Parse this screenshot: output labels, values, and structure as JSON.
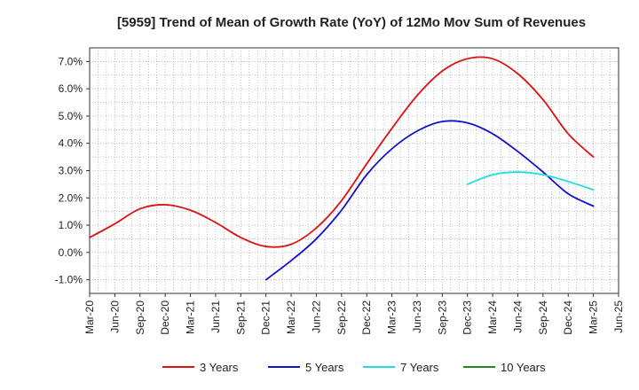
{
  "chart_data": {
    "type": "line",
    "title": "[5959]  Trend of Mean of Growth Rate (YoY) of 12Mo Mov Sum of Revenues",
    "xlabel": "",
    "ylabel": "",
    "x_tick_labels": [
      "Mar-20",
      "Jun-20",
      "Sep-20",
      "Dec-20",
      "Mar-21",
      "Jun-21",
      "Sep-21",
      "Dec-21",
      "Mar-22",
      "Jun-22",
      "Sep-22",
      "Dec-22",
      "Mar-23",
      "Jun-23",
      "Sep-23",
      "Dec-23",
      "Mar-24",
      "Jun-24",
      "Sep-24",
      "Dec-24",
      "Mar-25",
      "Jun-25"
    ],
    "y_tick_values": [
      -1.0,
      0.0,
      1.0,
      2.0,
      3.0,
      4.0,
      5.0,
      6.0,
      7.0
    ],
    "y_tick_labels": [
      "-1.0%",
      "0.0%",
      "1.0%",
      "2.0%",
      "3.0%",
      "4.0%",
      "5.0%",
      "6.0%",
      "7.0%"
    ],
    "ylim": [
      -1.5,
      7.5
    ],
    "grid": true,
    "legend_position": "bottom",
    "series": [
      {
        "name": "3 Years",
        "color": "#dd1111",
        "start_index": 0,
        "values": [
          0.55,
          1.05,
          1.6,
          1.75,
          1.55,
          1.1,
          0.55,
          0.22,
          0.3,
          0.9,
          1.9,
          3.25,
          4.55,
          5.75,
          6.65,
          7.1,
          7.1,
          6.55,
          5.6,
          4.35,
          3.5
        ]
      },
      {
        "name": "5 Years",
        "color": "#1111cc",
        "start_index": 7,
        "values": [
          -1.0,
          -0.3,
          0.5,
          1.55,
          2.85,
          3.8,
          4.45,
          4.8,
          4.75,
          4.35,
          3.7,
          2.95,
          2.15,
          1.7
        ]
      },
      {
        "name": "7 Years",
        "color": "#22dddd",
        "start_index": 15,
        "values": [
          2.5,
          2.85,
          2.95,
          2.85,
          2.6,
          2.3
        ]
      },
      {
        "name": "10 Years",
        "color": "#228822",
        "start_index": 0,
        "values": []
      }
    ]
  }
}
